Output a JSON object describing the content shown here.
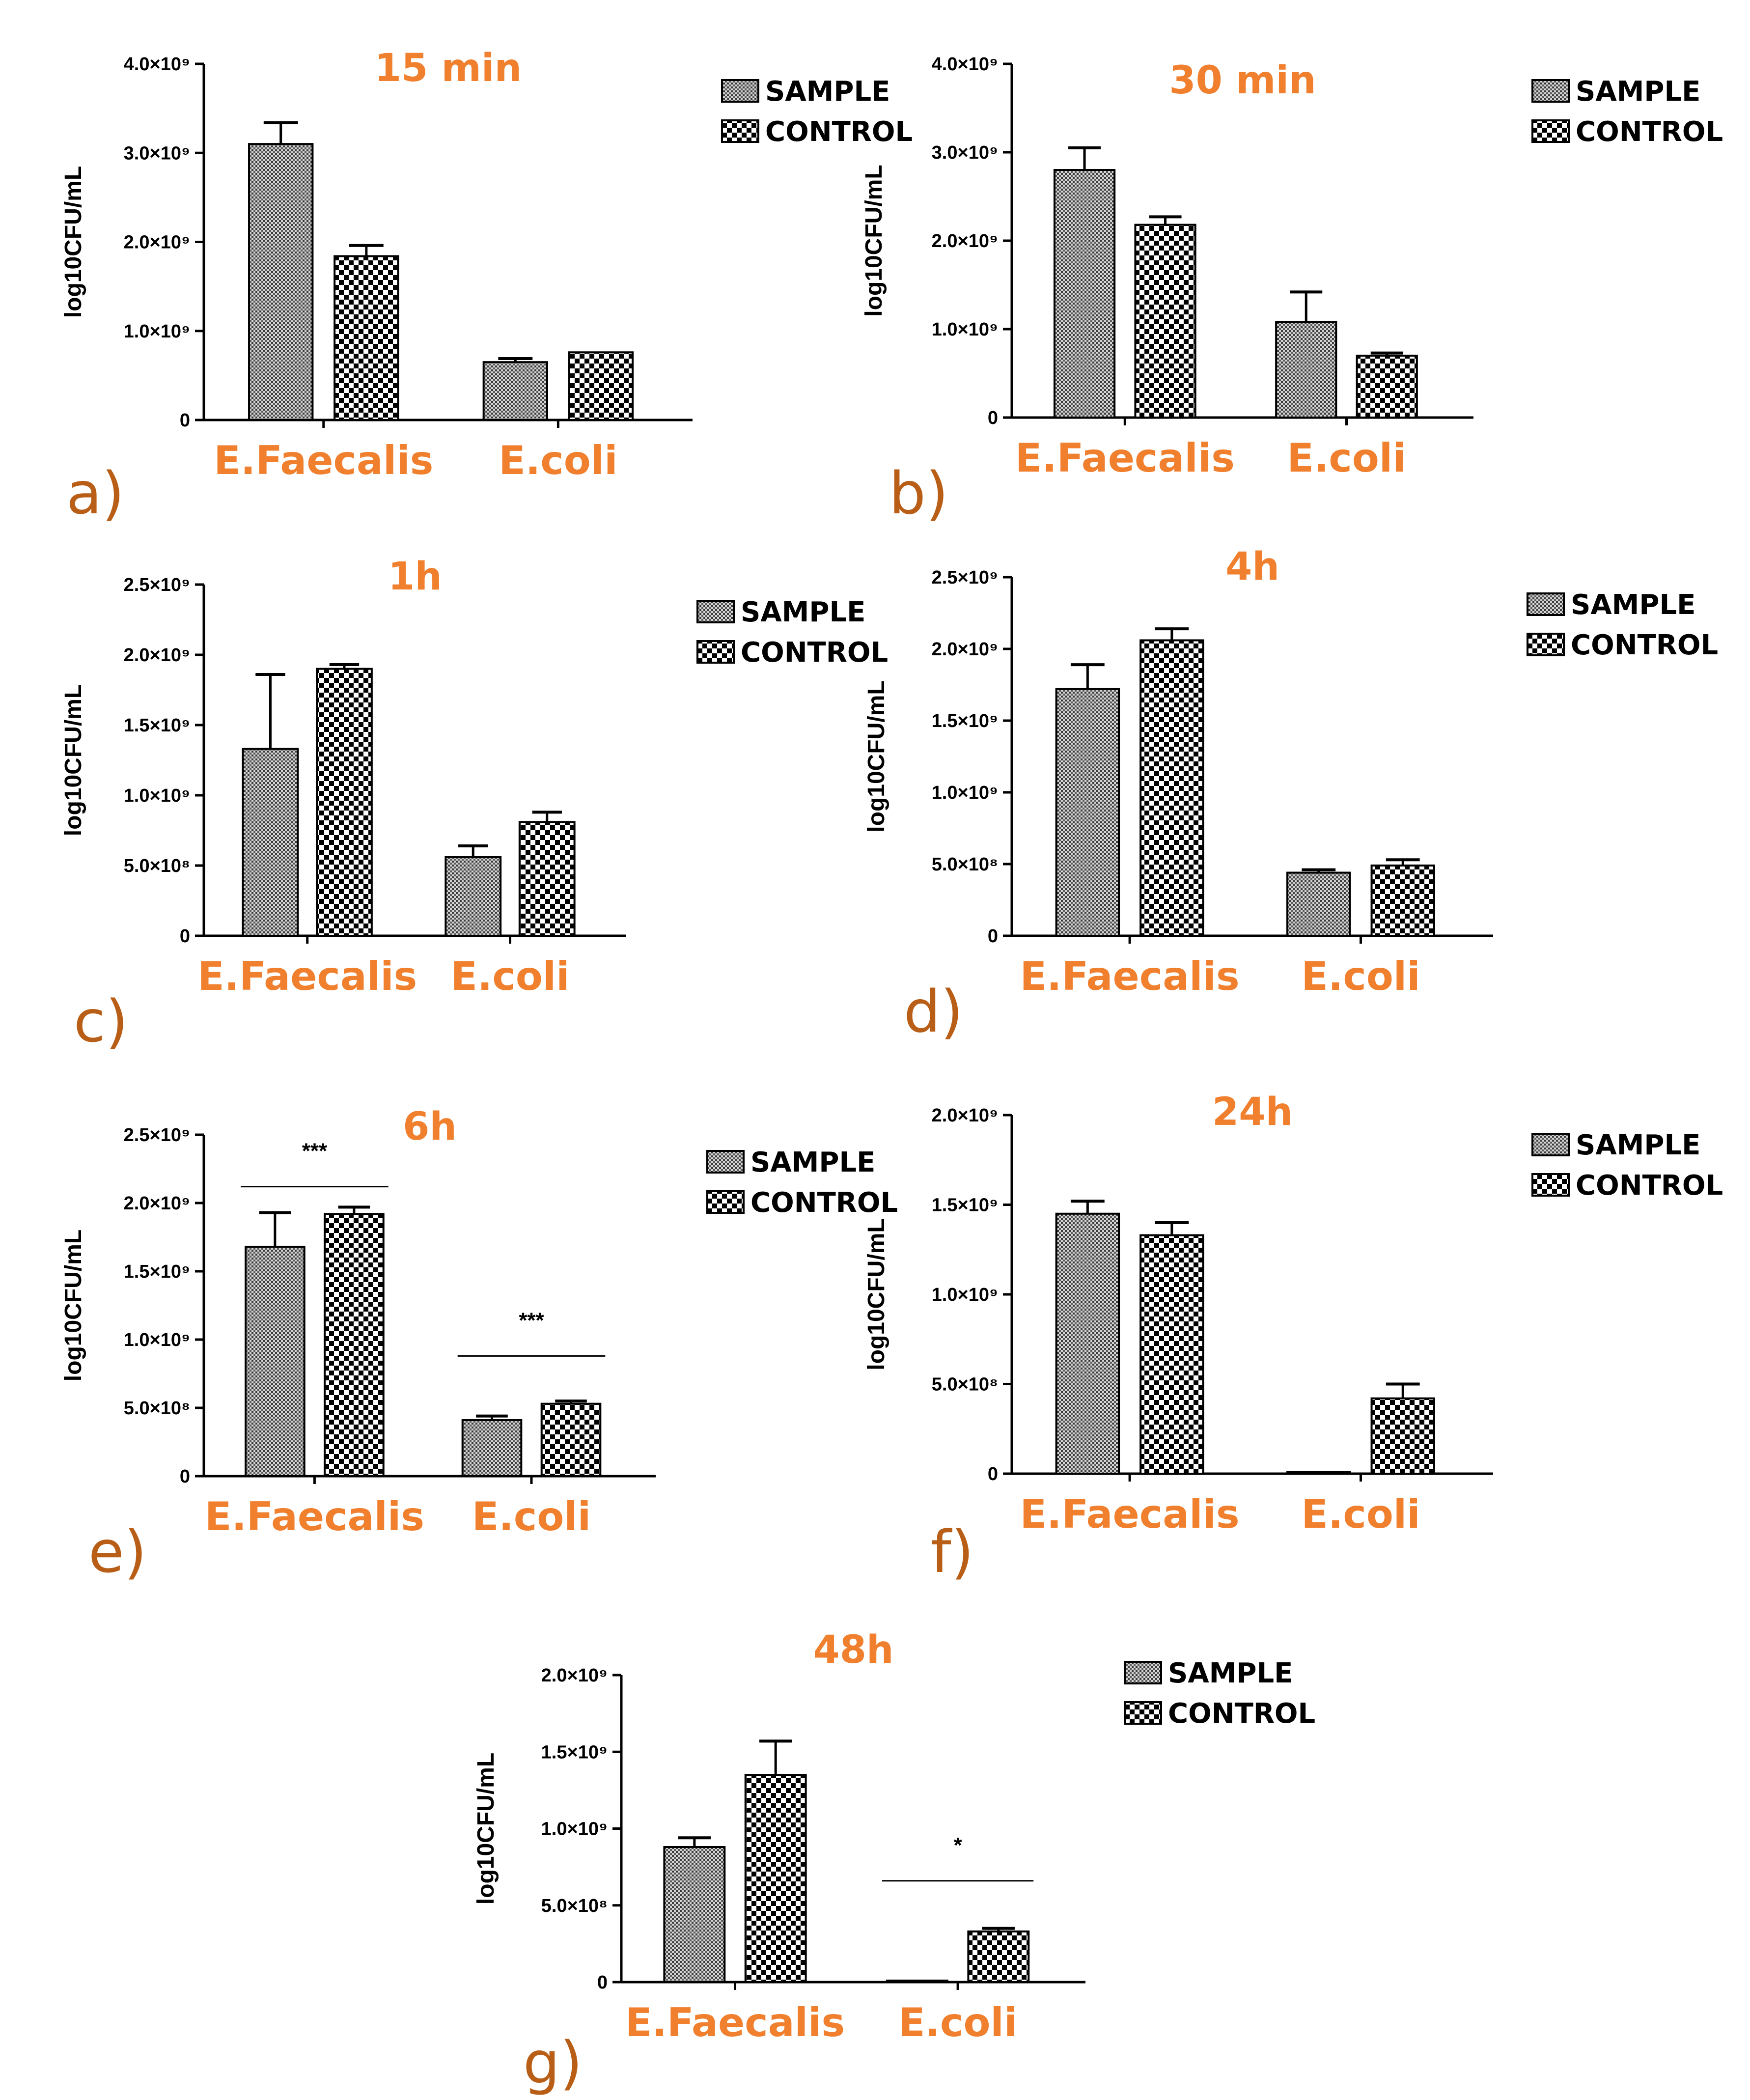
{
  "figure": {
    "legend": {
      "sample": "SAMPLE",
      "control": "CONTROL"
    },
    "ylabel": "log10CFU/mL",
    "categories": [
      "E.Faecalis",
      "E.coli"
    ]
  },
  "chart_data": [
    {
      "type": "bar",
      "panel": "a)",
      "title": "15 min",
      "categories": [
        "E.Faecalis",
        "E.coli"
      ],
      "series": [
        {
          "name": "SAMPLE",
          "values": [
            3100000000.0,
            650000000.0
          ],
          "errors": [
            240000000.0,
            40000000.0
          ]
        },
        {
          "name": "CONTROL",
          "values": [
            1840000000.0,
            760000000.0
          ],
          "errors": [
            120000000.0,
            0
          ]
        }
      ],
      "ylabel": "log10CFU/mL",
      "ylim": [
        0,
        4000000000.0
      ],
      "yticks": [
        {
          "value": 0,
          "label": "0"
        },
        {
          "value": 1000000000.0,
          "label": "1.0×10⁹"
        },
        {
          "value": 2000000000.0,
          "label": "2.0×10⁹"
        },
        {
          "value": 3000000000.0,
          "label": "3.0×10⁹"
        },
        {
          "value": 4000000000.0,
          "label": "4.0×10⁹"
        }
      ],
      "significance": []
    },
    {
      "type": "bar",
      "panel": "b)",
      "title": "30 min",
      "categories": [
        "E.Faecalis",
        "E.coli"
      ],
      "series": [
        {
          "name": "SAMPLE",
          "values": [
            2800000000.0,
            1080000000.0
          ],
          "errors": [
            250000000.0,
            340000000.0
          ]
        },
        {
          "name": "CONTROL",
          "values": [
            2180000000.0,
            700000000.0
          ],
          "errors": [
            90000000.0,
            30000000.0
          ]
        }
      ],
      "ylabel": "log10CFU/mL",
      "ylim": [
        0,
        4000000000.0
      ],
      "yticks": [
        {
          "value": 0,
          "label": "0"
        },
        {
          "value": 1000000000.0,
          "label": "1.0×10⁹"
        },
        {
          "value": 2000000000.0,
          "label": "2.0×10⁹"
        },
        {
          "value": 3000000000.0,
          "label": "3.0×10⁹"
        },
        {
          "value": 4000000000.0,
          "label": "4.0×10⁹"
        }
      ],
      "significance": []
    },
    {
      "type": "bar",
      "panel": "c)",
      "title": "1h",
      "categories": [
        "E.Faecalis",
        "E.coli"
      ],
      "series": [
        {
          "name": "SAMPLE",
          "values": [
            1330000000.0,
            560000000.0
          ],
          "errors": [
            530000000.0,
            80000000.0
          ]
        },
        {
          "name": "CONTROL",
          "values": [
            1900000000.0,
            810000000.0
          ],
          "errors": [
            30000000.0,
            70000000.0
          ]
        }
      ],
      "ylabel": "log10CFU/mL",
      "ylim": [
        0,
        2500000000.0
      ],
      "yticks": [
        {
          "value": 0,
          "label": "0"
        },
        {
          "value": 500000000.0,
          "label": "5.0×10⁸"
        },
        {
          "value": 1000000000.0,
          "label": "1.0×10⁹"
        },
        {
          "value": 1500000000.0,
          "label": "1.5×10⁹"
        },
        {
          "value": 2000000000.0,
          "label": "2.0×10⁹"
        },
        {
          "value": 2500000000.0,
          "label": "2.5×10⁹"
        }
      ],
      "significance": []
    },
    {
      "type": "bar",
      "panel": "d)",
      "title": "4h",
      "categories": [
        "E.Faecalis",
        "E.coli"
      ],
      "series": [
        {
          "name": "SAMPLE",
          "values": [
            1720000000.0,
            440000000.0
          ],
          "errors": [
            170000000.0,
            20000000.0
          ]
        },
        {
          "name": "CONTROL",
          "values": [
            2060000000.0,
            490000000.0
          ],
          "errors": [
            80000000.0,
            40000000.0
          ]
        }
      ],
      "ylabel": "log10CFU/mL",
      "ylim": [
        0,
        2500000000.0
      ],
      "yticks": [
        {
          "value": 0,
          "label": "0"
        },
        {
          "value": 500000000.0,
          "label": "5.0×10⁸"
        },
        {
          "value": 1000000000.0,
          "label": "1.0×10⁹"
        },
        {
          "value": 1500000000.0,
          "label": "1.5×10⁹"
        },
        {
          "value": 2000000000.0,
          "label": "2.0×10⁹"
        },
        {
          "value": 2500000000.0,
          "label": "2.5×10⁹"
        }
      ],
      "significance": []
    },
    {
      "type": "bar",
      "panel": "e)",
      "title": "6h",
      "categories": [
        "E.Faecalis",
        "E.coli"
      ],
      "series": [
        {
          "name": "SAMPLE",
          "values": [
            1680000000.0,
            410000000.0
          ],
          "errors": [
            250000000.0,
            30000000.0
          ]
        },
        {
          "name": "CONTROL",
          "values": [
            1920000000.0,
            530000000.0
          ],
          "errors": [
            50000000.0,
            20000000.0
          ]
        }
      ],
      "ylabel": "log10CFU/mL",
      "ylim": [
        0,
        2500000000.0
      ],
      "yticks": [
        {
          "value": 0,
          "label": "0"
        },
        {
          "value": 500000000.0,
          "label": "5.0×10⁸"
        },
        {
          "value": 1000000000.0,
          "label": "1.0×10⁹"
        },
        {
          "value": 1500000000.0,
          "label": "1.5×10⁹"
        },
        {
          "value": 2000000000.0,
          "label": "2.0×10⁹"
        },
        {
          "value": 2500000000.0,
          "label": "2.5×10⁹"
        }
      ],
      "significance": [
        {
          "category": "E.Faecalis",
          "label": "***",
          "level": 2120000000.0
        },
        {
          "category": "E.coli",
          "label": "***",
          "level": 880000000.0
        }
      ]
    },
    {
      "type": "bar",
      "panel": "f)",
      "title": "24h",
      "categories": [
        "E.Faecalis",
        "E.coli"
      ],
      "series": [
        {
          "name": "SAMPLE",
          "values": [
            1450000000.0,
            0
          ],
          "errors": [
            70000000.0,
            0
          ]
        },
        {
          "name": "CONTROL",
          "values": [
            1330000000.0,
            420000000.0
          ],
          "errors": [
            70000000.0,
            80000000.0
          ]
        }
      ],
      "ylabel": "log10CFU/mL",
      "ylim": [
        0,
        2000000000.0
      ],
      "yticks": [
        {
          "value": 0,
          "label": "0"
        },
        {
          "value": 500000000.0,
          "label": "5.0×10⁸"
        },
        {
          "value": 1000000000.0,
          "label": "1.0×10⁹"
        },
        {
          "value": 1500000000.0,
          "label": "1.5×10⁹"
        },
        {
          "value": 2000000000.0,
          "label": "2.0×10⁹"
        }
      ],
      "significance": []
    },
    {
      "type": "bar",
      "panel": "g)",
      "title": "48h",
      "categories": [
        "E.Faecalis",
        "E.coli"
      ],
      "series": [
        {
          "name": "SAMPLE",
          "values": [
            880000000.0,
            10000000.0
          ],
          "errors": [
            60000000.0,
            0
          ]
        },
        {
          "name": "CONTROL",
          "values": [
            1350000000.0,
            330000000.0
          ],
          "errors": [
            220000000.0,
            20000000.0
          ]
        }
      ],
      "ylabel": "log10CFU/mL",
      "ylim": [
        0,
        2000000000.0
      ],
      "yticks": [
        {
          "value": 0,
          "label": "0"
        },
        {
          "value": 500000000.0,
          "label": "5.0×10⁸"
        },
        {
          "value": 1000000000.0,
          "label": "1.0×10⁹"
        },
        {
          "value": 1500000000.0,
          "label": "1.5×10⁹"
        },
        {
          "value": 2000000000.0,
          "label": "2.0×10⁹"
        }
      ],
      "significance": [
        {
          "category": "E.coli",
          "label": "*",
          "level": 660000000.0
        }
      ]
    }
  ]
}
